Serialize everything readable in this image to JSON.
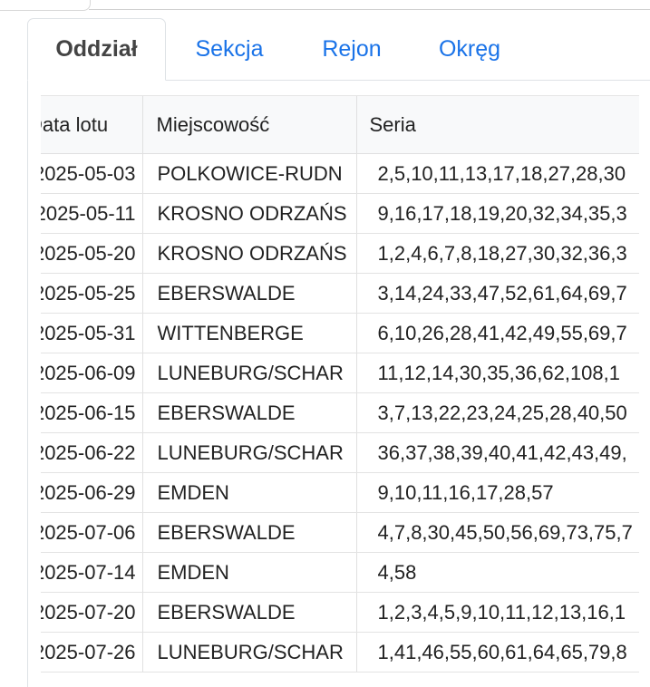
{
  "tabs": [
    {
      "label": "Oddział",
      "active": true
    },
    {
      "label": "Sekcja"
    },
    {
      "label": "Rejon"
    },
    {
      "label": "Okręg"
    }
  ],
  "colors": {
    "accent": "#1a73e8",
    "active_tab_text": "#444444"
  },
  "table": {
    "headers": [
      "Data lotu",
      "Miejscowość",
      "Seria"
    ],
    "rows": [
      [
        "2025-05-03",
        "POLKOWICE-RUDN",
        "2,5,10,11,13,17,18,27,28,30"
      ],
      [
        "2025-05-11",
        "KROSNO ODRZAŃS",
        "9,16,17,18,19,20,32,34,35,3"
      ],
      [
        "2025-05-20",
        "KROSNO ODRZAŃS",
        "1,2,4,6,7,8,18,27,30,32,36,3"
      ],
      [
        "2025-05-25",
        "EBERSWALDE",
        "3,14,24,33,47,52,61,64,69,7"
      ],
      [
        "2025-05-31",
        "WITTENBERGE",
        "6,10,26,28,41,42,49,55,69,7"
      ],
      [
        "2025-06-09",
        "LUNEBURG/SCHAR",
        "11,12,14,30,35,36,62,108,1"
      ],
      [
        "2025-06-15",
        "EBERSWALDE",
        "3,7,13,22,23,24,25,28,40,50"
      ],
      [
        "2025-06-22",
        "LUNEBURG/SCHAR",
        "36,37,38,39,40,41,42,43,49,"
      ],
      [
        "2025-06-29",
        "EMDEN",
        "9,10,11,16,17,28,57"
      ],
      [
        "2025-07-06",
        "EBERSWALDE",
        "4,7,8,30,45,50,56,69,73,75,7"
      ],
      [
        "2025-07-14",
        "EMDEN",
        "4,58"
      ],
      [
        "2025-07-20",
        "EBERSWALDE",
        "1,2,3,4,5,9,10,11,12,13,16,1"
      ],
      [
        "2025-07-26",
        "LUNEBURG/SCHAR",
        "1,41,46,55,60,61,64,65,79,8"
      ]
    ]
  }
}
